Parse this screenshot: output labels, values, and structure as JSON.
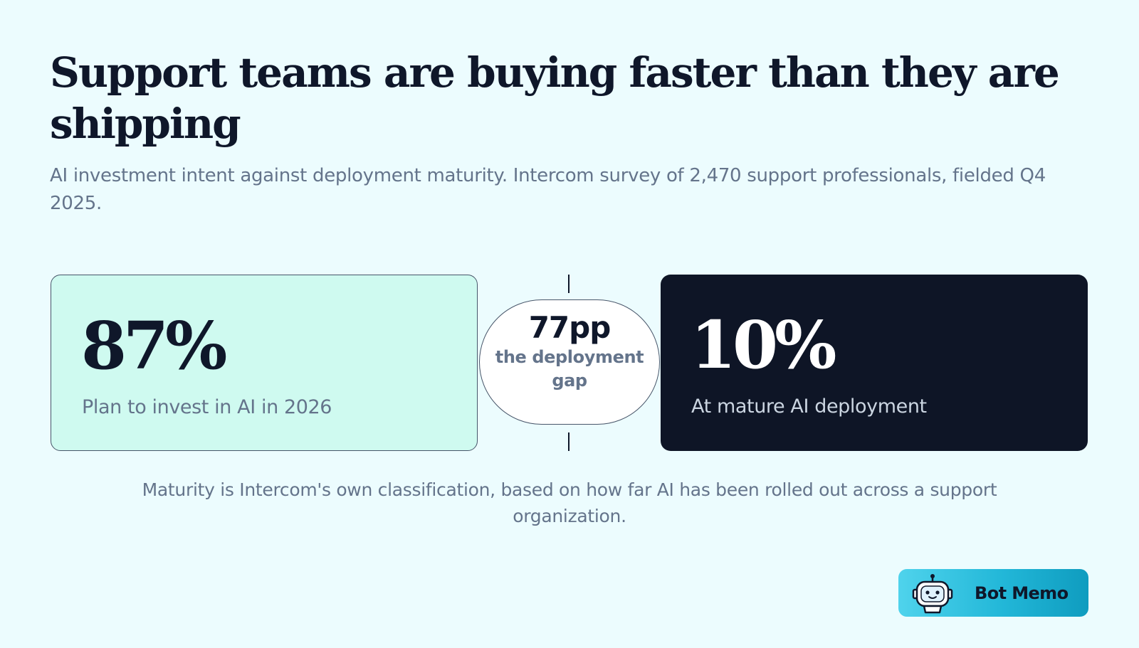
{
  "header": {
    "title": "Support teams are buying faster than they are shipping",
    "subtitle": "AI investment intent against deployment maturity. Intercom survey of 2,470 support professionals, fielded Q4 2025."
  },
  "stats": {
    "invest": {
      "value": "87%",
      "label": "Plan to invest in AI in 2026"
    },
    "mature": {
      "value": "10%",
      "label": "At mature AI deployment"
    },
    "gap": {
      "value": "77pp",
      "caption": "the deployment gap"
    }
  },
  "footnote": "Maturity is Intercom's own classification, based on how far AI has been rolled out across a support organization.",
  "brand": {
    "name": "Bot Memo",
    "icon": "robot-icon"
  },
  "colors": {
    "background": "#ecfcfe",
    "invest_card": "#cffaf0",
    "mature_card": "#0e1526",
    "text_dark": "#0f172a",
    "text_muted": "#64748b",
    "brand_accent": "#22b7d8"
  }
}
